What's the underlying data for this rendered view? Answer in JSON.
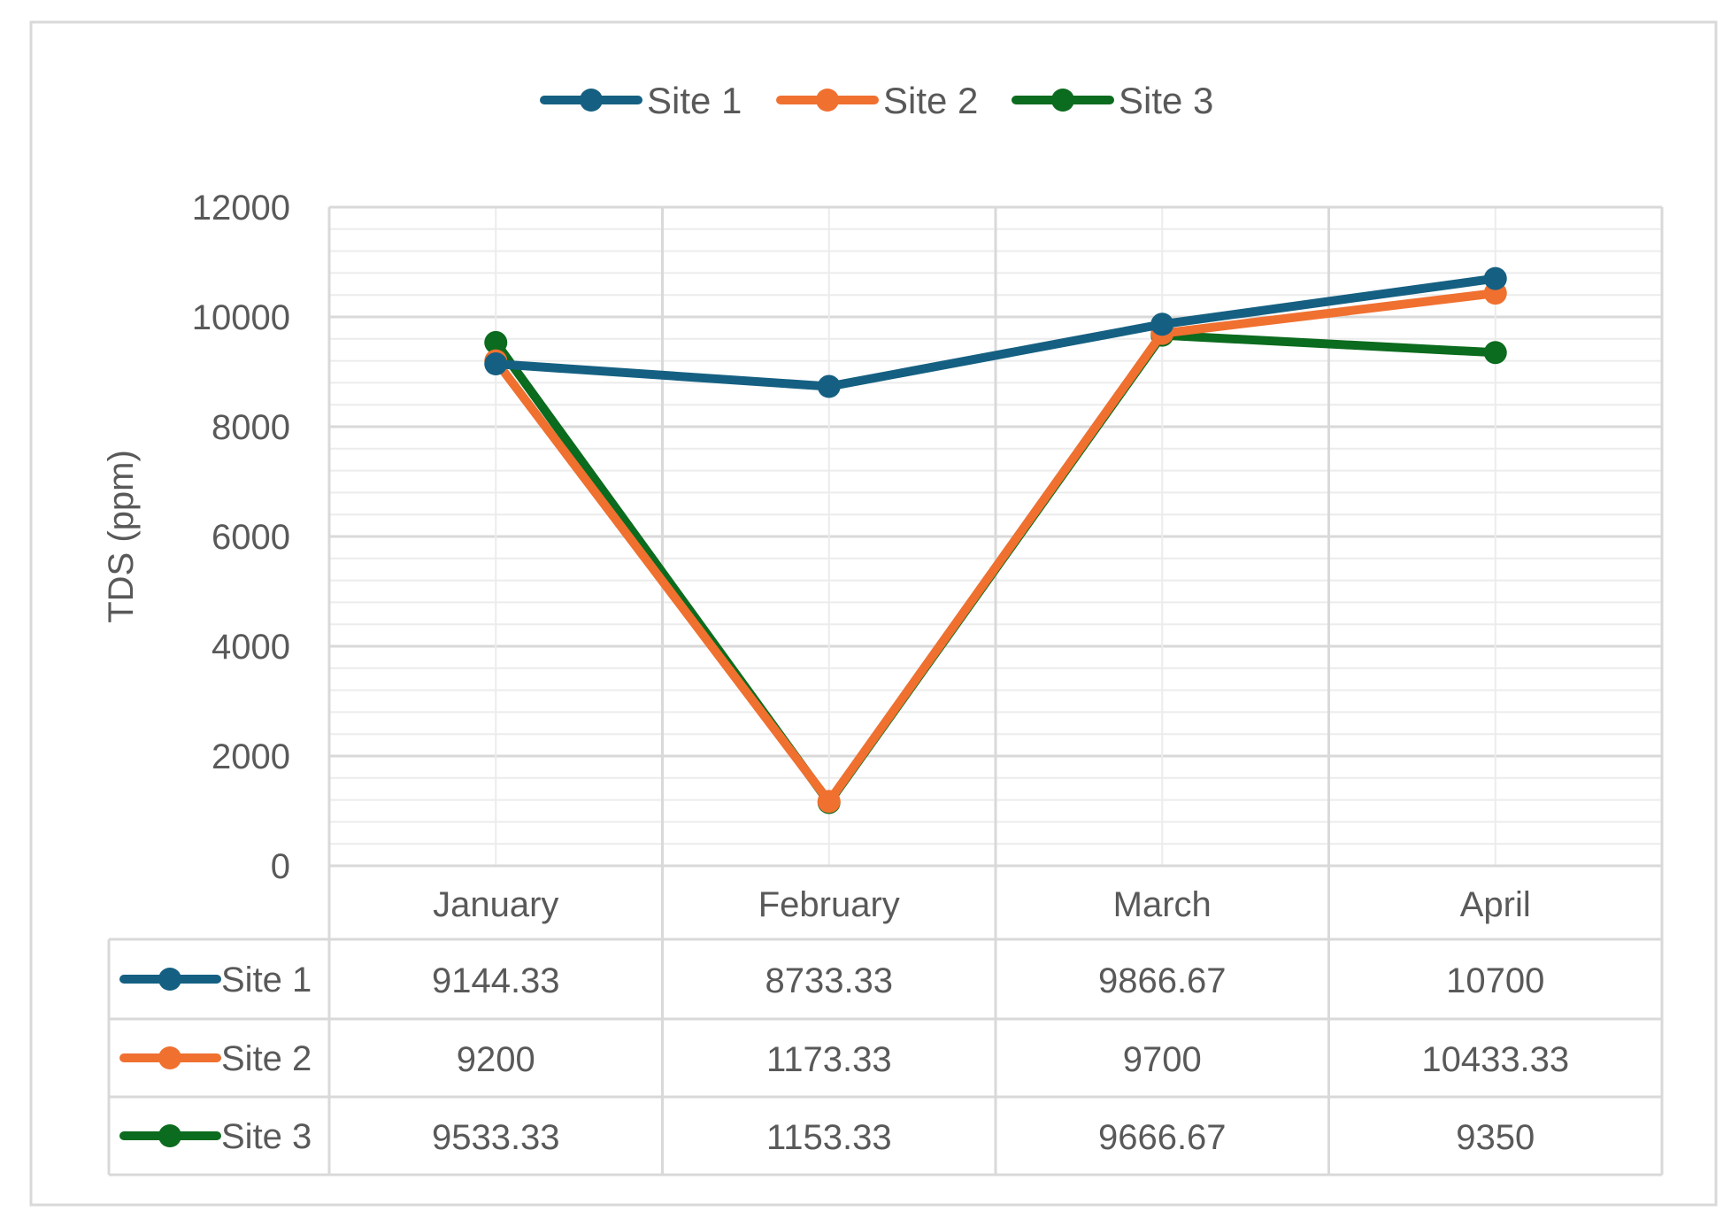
{
  "chart_data": {
    "type": "line",
    "title": "",
    "xlabel": "",
    "ylabel": "TDS (ppm)",
    "ylim": [
      0,
      12000
    ],
    "yticks": [
      0,
      2000,
      4000,
      6000,
      8000,
      10000,
      12000
    ],
    "grid": true,
    "legend_placement": "top",
    "categories": [
      "January",
      "February",
      "March",
      "April"
    ],
    "series": [
      {
        "name": "Site 1",
        "color": "#156082",
        "values": [
          9144.33,
          8733.33,
          9866.67,
          10700
        ],
        "labels": [
          "9144.33",
          "8733.33",
          "9866.67",
          "10700"
        ]
      },
      {
        "name": "Site 2",
        "color": "#F07030",
        "values": [
          9200,
          1173.33,
          9700,
          10433.33
        ],
        "labels": [
          "9200",
          "1173.33",
          "9700",
          "10433.33"
        ]
      },
      {
        "name": "Site 3",
        "color": "#0B6B1E",
        "values": [
          9533.33,
          1153.33,
          9666.67,
          9350
        ],
        "labels": [
          "9533.33",
          "1153.33",
          "9666.67",
          "9350"
        ]
      }
    ],
    "data_table": true
  }
}
